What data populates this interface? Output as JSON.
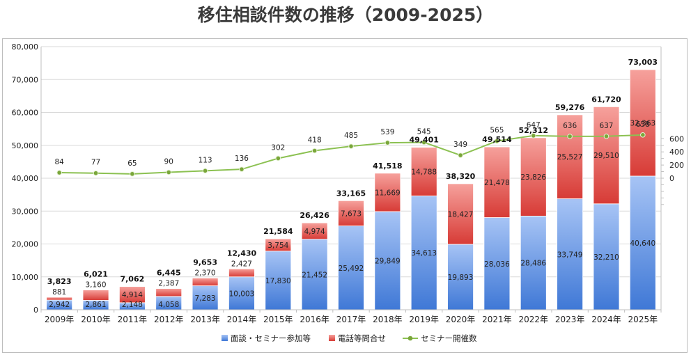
{
  "title": "移住相談件数の推移（2009-2025）",
  "chart_data": {
    "type": "bar",
    "stacked": true,
    "categories": [
      "2009年",
      "2010年",
      "2011年",
      "2012年",
      "2013年",
      "2014年",
      "2015年",
      "2016年",
      "2017年",
      "2018年",
      "2019年",
      "2020年",
      "2021年",
      "2022年",
      "2023年",
      "2024年",
      "2025年"
    ],
    "series": [
      {
        "name": "面談・セミナー参加等",
        "type": "bar",
        "axis": "left",
        "color": "#5b8fe0",
        "values": [
          2942,
          2861,
          2148,
          4058,
          7283,
          10003,
          17830,
          21452,
          25492,
          29849,
          34613,
          19893,
          28036,
          28486,
          33749,
          32210,
          40640
        ],
        "labels": [
          "2,942",
          "2,861",
          "2,148",
          "4,058",
          "7,283",
          "10,003",
          "17,830",
          "21,452",
          "25,492",
          "29,849",
          "34,613",
          "19,893",
          "28,036",
          "28,486",
          "33,749",
          "32,210",
          "40,640"
        ]
      },
      {
        "name": "電話等問合せ",
        "type": "bar",
        "axis": "left",
        "color": "#e8605a",
        "values": [
          881,
          3160,
          4914,
          2387,
          2370,
          2427,
          3754,
          4974,
          7673,
          11669,
          14788,
          18427,
          21478,
          23826,
          25527,
          29510,
          32363
        ],
        "labels": [
          "881",
          "3,160",
          "4,914",
          "2,387",
          "2,370",
          "2,427",
          "3,754",
          "4,974",
          "7,673",
          "11,669",
          "14,788",
          "18,427",
          "21,478",
          "23,826",
          "25,527",
          "29,510",
          "32,363"
        ]
      },
      {
        "name": "セミナー開催数",
        "type": "line",
        "axis": "right",
        "color": "#8cc152",
        "values": [
          84,
          77,
          65,
          90,
          113,
          136,
          302,
          418,
          485,
          539,
          545,
          349,
          565,
          647,
          636,
          637,
          658
        ],
        "labels": [
          "84",
          "77",
          "65",
          "90",
          "113",
          "136",
          "302",
          "418",
          "485",
          "539",
          "545",
          "349",
          "565",
          "647",
          "636",
          "637",
          "658"
        ]
      }
    ],
    "totals": [
      3823,
      6021,
      7062,
      6445,
      9653,
      12430,
      21584,
      26426,
      33165,
      41518,
      49401,
      38320,
      49514,
      52312,
      59276,
      61720,
      73003
    ],
    "total_labels": [
      "3,823",
      "6,021",
      "7,062",
      "6,445",
      "9,653",
      "12,430",
      "21,584",
      "26,426",
      "33,165",
      "41,518",
      "49,401",
      "38,320",
      "49,514",
      "52,312",
      "59,276",
      "61,720",
      "73,003"
    ],
    "ylim": [
      0,
      80000
    ],
    "yticks": [
      0,
      10000,
      20000,
      30000,
      40000,
      50000,
      60000,
      70000,
      80000
    ],
    "ytick_labels": [
      "0",
      "10,000",
      "20,000",
      "30,000",
      "40,000",
      "50,000",
      "60,000",
      "70,000",
      "80,000"
    ],
    "y2ticks": [
      0,
      200,
      400,
      600
    ],
    "y2tick_labels": [
      "0",
      "200",
      "400",
      "600"
    ],
    "grid": true,
    "legend_position": "bottom"
  }
}
